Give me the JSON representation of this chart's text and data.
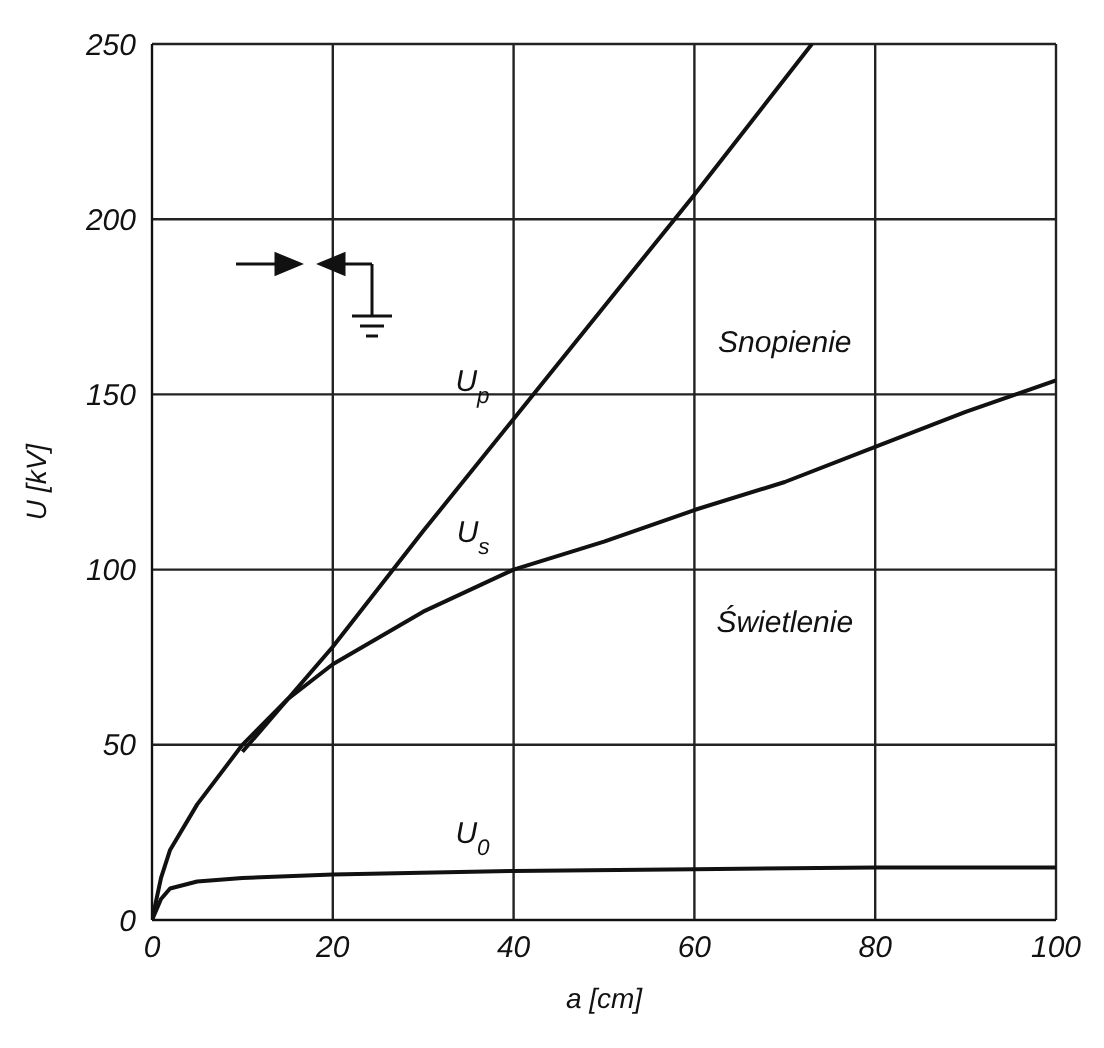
{
  "chart_data": {
    "type": "line",
    "xlabel": "a [cm]",
    "ylabel": "U [kV]",
    "xlim": [
      0,
      100
    ],
    "ylim": [
      0,
      250
    ],
    "xticks": [
      0,
      20,
      40,
      60,
      80,
      100
    ],
    "yticks": [
      0,
      50,
      100,
      150,
      200,
      250
    ],
    "grid": true,
    "legend": false,
    "marker": "none",
    "line_style": "solid",
    "series": [
      {
        "name": "U$_{p}$",
        "color": "#111111",
        "x": [
          10,
          20,
          30,
          40,
          50,
          60,
          73
        ],
        "values": [
          48,
          78,
          111,
          143,
          175,
          207,
          250
        ]
      },
      {
        "name": "U$_{s}$",
        "color": "#111111",
        "x": [
          0,
          1,
          2,
          5,
          10,
          15,
          20,
          30,
          40,
          50,
          60,
          70,
          80,
          90,
          100
        ],
        "values": [
          0,
          12,
          20,
          33,
          50,
          63,
          73,
          88,
          100,
          108,
          117,
          125,
          135,
          145,
          154
        ]
      },
      {
        "name": "U$_{0}$",
        "color": "#111111",
        "x": [
          0,
          1,
          2,
          5,
          10,
          20,
          40,
          60,
          80,
          100
        ],
        "values": [
          0,
          6,
          9,
          11,
          12,
          13,
          14,
          14.5,
          15,
          15
        ]
      }
    ],
    "annotations": [
      "Snopienie",
      "Świetlenie"
    ]
  }
}
